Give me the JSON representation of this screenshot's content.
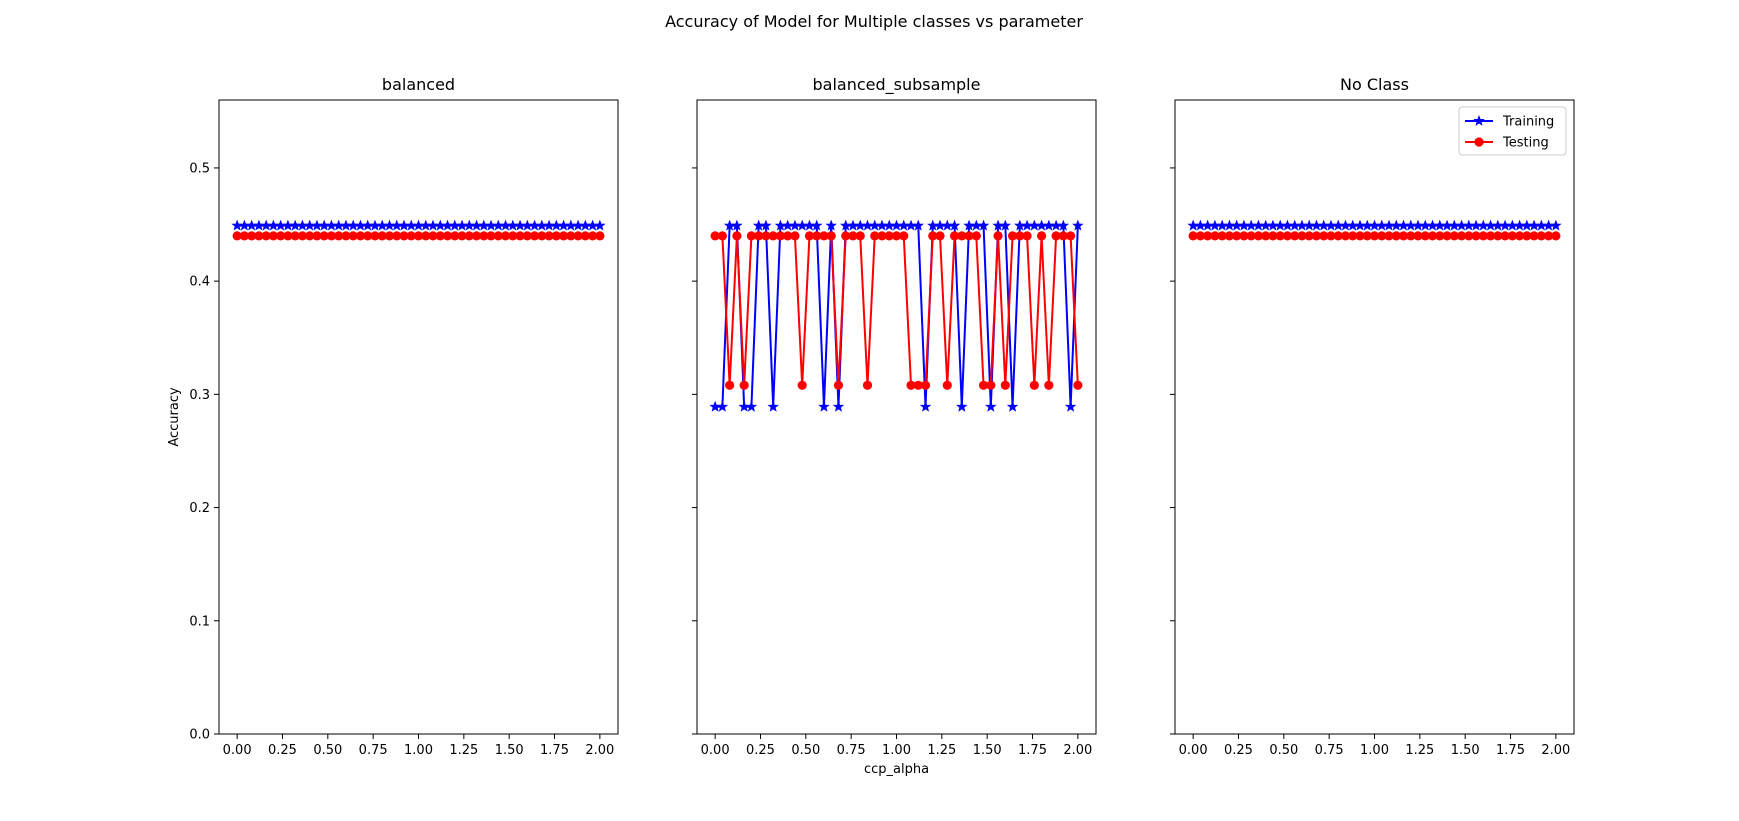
{
  "figure": {
    "suptitle": "Accuracy of Model for Multiple classes vs parameter"
  },
  "chart_data": [
    {
      "type": "line",
      "title": "balanced",
      "xlabel": "",
      "ylabel": "Accuracy",
      "xlim": [
        -0.1,
        2.1
      ],
      "ylim": [
        0.0,
        0.56
      ],
      "xticks": [
        "0.00",
        "0.25",
        "0.50",
        "0.75",
        "1.00",
        "1.25",
        "1.50",
        "1.75",
        "2.00"
      ],
      "yticks": [
        "0.0",
        "0.1",
        "0.2",
        "0.3",
        "0.4",
        "0.5"
      ],
      "show_yticklabels": true,
      "legend": false,
      "x": [
        0.0,
        0.04,
        0.08,
        0.12,
        0.16,
        0.2,
        0.24,
        0.28,
        0.32,
        0.36,
        0.4,
        0.44,
        0.48,
        0.52,
        0.56,
        0.6,
        0.64,
        0.68,
        0.72,
        0.76,
        0.8,
        0.84,
        0.88,
        0.92,
        0.96,
        1.0,
        1.04,
        1.08,
        1.12,
        1.16,
        1.2,
        1.24,
        1.28,
        1.32,
        1.36,
        1.4,
        1.44,
        1.48,
        1.52,
        1.56,
        1.6,
        1.64,
        1.68,
        1.72,
        1.76,
        1.8,
        1.84,
        1.88,
        1.92,
        1.96,
        2.0
      ],
      "series": [
        {
          "name": "Training",
          "color": "#0000ff",
          "marker": "star",
          "values": [
            0.449,
            0.449,
            0.449,
            0.449,
            0.449,
            0.449,
            0.449,
            0.449,
            0.449,
            0.449,
            0.449,
            0.449,
            0.449,
            0.449,
            0.449,
            0.449,
            0.449,
            0.449,
            0.449,
            0.449,
            0.449,
            0.449,
            0.449,
            0.449,
            0.449,
            0.449,
            0.449,
            0.449,
            0.449,
            0.449,
            0.449,
            0.449,
            0.449,
            0.449,
            0.449,
            0.449,
            0.449,
            0.449,
            0.449,
            0.449,
            0.449,
            0.449,
            0.449,
            0.449,
            0.449,
            0.449,
            0.449,
            0.449,
            0.449,
            0.449,
            0.449
          ]
        },
        {
          "name": "Testing",
          "color": "#ff0000",
          "marker": "circle",
          "values": [
            0.44,
            0.44,
            0.44,
            0.44,
            0.44,
            0.44,
            0.44,
            0.44,
            0.44,
            0.44,
            0.44,
            0.44,
            0.44,
            0.44,
            0.44,
            0.44,
            0.44,
            0.44,
            0.44,
            0.44,
            0.44,
            0.44,
            0.44,
            0.44,
            0.44,
            0.44,
            0.44,
            0.44,
            0.44,
            0.44,
            0.44,
            0.44,
            0.44,
            0.44,
            0.44,
            0.44,
            0.44,
            0.44,
            0.44,
            0.44,
            0.44,
            0.44,
            0.44,
            0.44,
            0.44,
            0.44,
            0.44,
            0.44,
            0.44,
            0.44,
            0.44
          ]
        }
      ]
    },
    {
      "type": "line",
      "title": "balanced_subsample",
      "xlabel": "ccp_alpha",
      "ylabel": "",
      "xlim": [
        -0.1,
        2.1
      ],
      "ylim": [
        0.0,
        0.56
      ],
      "xticks": [
        "0.00",
        "0.25",
        "0.50",
        "0.75",
        "1.00",
        "1.25",
        "1.50",
        "1.75",
        "2.00"
      ],
      "yticks": [
        "0.0",
        "0.1",
        "0.2",
        "0.3",
        "0.4",
        "0.5"
      ],
      "show_yticklabels": false,
      "legend": false,
      "x": [
        0.0,
        0.04,
        0.08,
        0.12,
        0.16,
        0.2,
        0.24,
        0.28,
        0.32,
        0.36,
        0.4,
        0.44,
        0.48,
        0.52,
        0.56,
        0.6,
        0.64,
        0.68,
        0.72,
        0.76,
        0.8,
        0.84,
        0.88,
        0.92,
        0.96,
        1.0,
        1.04,
        1.08,
        1.12,
        1.16,
        1.2,
        1.24,
        1.28,
        1.32,
        1.36,
        1.4,
        1.44,
        1.48,
        1.52,
        1.56,
        1.6,
        1.64,
        1.68,
        1.72,
        1.76,
        1.8,
        1.84,
        1.88,
        1.92,
        1.96,
        2.0
      ],
      "series": [
        {
          "name": "Training",
          "color": "#0000ff",
          "marker": "star",
          "values": [
            0.289,
            0.289,
            0.449,
            0.449,
            0.289,
            0.289,
            0.449,
            0.449,
            0.289,
            0.449,
            0.449,
            0.449,
            0.449,
            0.449,
            0.449,
            0.289,
            0.449,
            0.289,
            0.449,
            0.449,
            0.449,
            0.449,
            0.449,
            0.449,
            0.449,
            0.449,
            0.449,
            0.449,
            0.449,
            0.289,
            0.449,
            0.449,
            0.449,
            0.449,
            0.289,
            0.449,
            0.449,
            0.449,
            0.289,
            0.449,
            0.449,
            0.289,
            0.449,
            0.449,
            0.449,
            0.449,
            0.449,
            0.449,
            0.449,
            0.289,
            0.449
          ]
        },
        {
          "name": "Testing",
          "color": "#ff0000",
          "marker": "circle",
          "values": [
            0.44,
            0.44,
            0.308,
            0.44,
            0.308,
            0.44,
            0.44,
            0.44,
            0.44,
            0.44,
            0.44,
            0.44,
            0.308,
            0.44,
            0.44,
            0.44,
            0.44,
            0.308,
            0.44,
            0.44,
            0.44,
            0.308,
            0.44,
            0.44,
            0.44,
            0.44,
            0.44,
            0.308,
            0.308,
            0.308,
            0.44,
            0.44,
            0.308,
            0.44,
            0.44,
            0.44,
            0.44,
            0.308,
            0.308,
            0.44,
            0.308,
            0.44,
            0.44,
            0.44,
            0.308,
            0.44,
            0.308,
            0.44,
            0.44,
            0.44,
            0.308
          ]
        }
      ]
    },
    {
      "type": "line",
      "title": "No Class",
      "xlabel": "",
      "ylabel": "",
      "xlim": [
        -0.1,
        2.1
      ],
      "ylim": [
        0.0,
        0.56
      ],
      "xticks": [
        "0.00",
        "0.25",
        "0.50",
        "0.75",
        "1.00",
        "1.25",
        "1.50",
        "1.75",
        "2.00"
      ],
      "yticks": [
        "0.0",
        "0.1",
        "0.2",
        "0.3",
        "0.4",
        "0.5"
      ],
      "show_yticklabels": false,
      "legend": true,
      "legend_position": "top-right",
      "x": [
        0.0,
        0.04,
        0.08,
        0.12,
        0.16,
        0.2,
        0.24,
        0.28,
        0.32,
        0.36,
        0.4,
        0.44,
        0.48,
        0.52,
        0.56,
        0.6,
        0.64,
        0.68,
        0.72,
        0.76,
        0.8,
        0.84,
        0.88,
        0.92,
        0.96,
        1.0,
        1.04,
        1.08,
        1.12,
        1.16,
        1.2,
        1.24,
        1.28,
        1.32,
        1.36,
        1.4,
        1.44,
        1.48,
        1.52,
        1.56,
        1.6,
        1.64,
        1.68,
        1.72,
        1.76,
        1.8,
        1.84,
        1.88,
        1.92,
        1.96,
        2.0
      ],
      "series": [
        {
          "name": "Training",
          "color": "#0000ff",
          "marker": "star",
          "values": [
            0.449,
            0.449,
            0.449,
            0.449,
            0.449,
            0.449,
            0.449,
            0.449,
            0.449,
            0.449,
            0.449,
            0.449,
            0.449,
            0.449,
            0.449,
            0.449,
            0.449,
            0.449,
            0.449,
            0.449,
            0.449,
            0.449,
            0.449,
            0.449,
            0.449,
            0.449,
            0.449,
            0.449,
            0.449,
            0.449,
            0.449,
            0.449,
            0.449,
            0.449,
            0.449,
            0.449,
            0.449,
            0.449,
            0.449,
            0.449,
            0.449,
            0.449,
            0.449,
            0.449,
            0.449,
            0.449,
            0.449,
            0.449,
            0.449,
            0.449,
            0.449
          ]
        },
        {
          "name": "Testing",
          "color": "#ff0000",
          "marker": "circle",
          "values": [
            0.44,
            0.44,
            0.44,
            0.44,
            0.44,
            0.44,
            0.44,
            0.44,
            0.44,
            0.44,
            0.44,
            0.44,
            0.44,
            0.44,
            0.44,
            0.44,
            0.44,
            0.44,
            0.44,
            0.44,
            0.44,
            0.44,
            0.44,
            0.44,
            0.44,
            0.44,
            0.44,
            0.44,
            0.44,
            0.44,
            0.44,
            0.44,
            0.44,
            0.44,
            0.44,
            0.44,
            0.44,
            0.44,
            0.44,
            0.44,
            0.44,
            0.44,
            0.44,
            0.44,
            0.44,
            0.44,
            0.44,
            0.44,
            0.44,
            0.44,
            0.44
          ]
        }
      ]
    }
  ]
}
